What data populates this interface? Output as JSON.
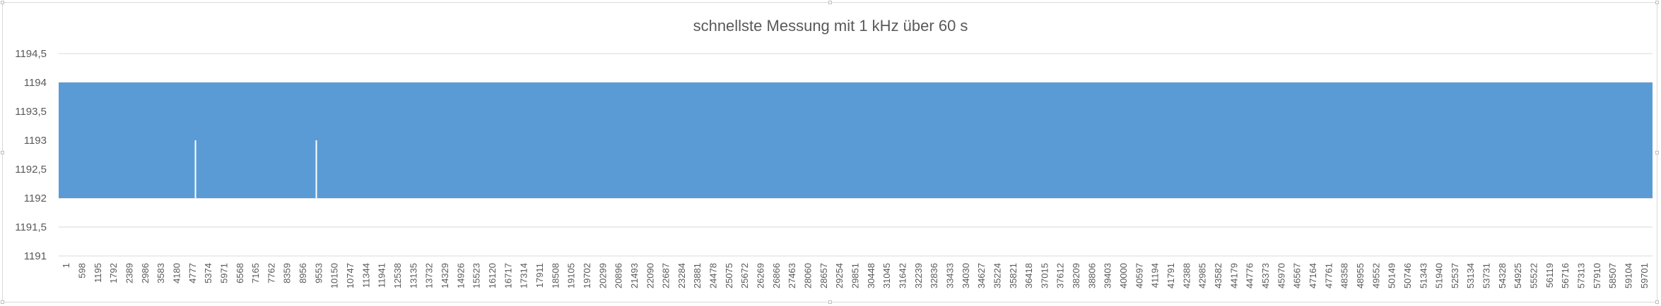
{
  "chart_data": {
    "type": "area",
    "title": "schnellste Messung mit 1 kHz über 60 s",
    "xlabel": "",
    "ylabel": "",
    "ylim": [
      1191,
      1194.5
    ],
    "y_ticks": [
      "1191",
      "1191,5",
      "1192",
      "1192,5",
      "1193",
      "1193,5",
      "1194",
      "1194,5"
    ],
    "x_tick_labels": [
      "1",
      "598",
      "1195",
      "1792",
      "2389",
      "2986",
      "3583",
      "4180",
      "4777",
      "5374",
      "5971",
      "6568",
      "7165",
      "7762",
      "8359",
      "8956",
      "9553",
      "10150",
      "10747",
      "11344",
      "11941",
      "12538",
      "13135",
      "13732",
      "14329",
      "14926",
      "15523",
      "16120",
      "16717",
      "17314",
      "17911",
      "18508",
      "19105",
      "19702",
      "20299",
      "20896",
      "21493",
      "22090",
      "22687",
      "23284",
      "23881",
      "24478",
      "25075",
      "25672",
      "26269",
      "26866",
      "27463",
      "28060",
      "28657",
      "29254",
      "29851",
      "30448",
      "31045",
      "31642",
      "32239",
      "32836",
      "33433",
      "34030",
      "34627",
      "35224",
      "35821",
      "36418",
      "37015",
      "37612",
      "38209",
      "38806",
      "39403",
      "40000",
      "40597",
      "41194",
      "41791",
      "42388",
      "42985",
      "43582",
      "44179",
      "44776",
      "45373",
      "45970",
      "46567",
      "47164",
      "47761",
      "48358",
      "48955",
      "49552",
      "50149",
      "50746",
      "51343",
      "51940",
      "52537",
      "53134",
      "53731",
      "54328",
      "54925",
      "55522",
      "56119",
      "56716",
      "57313",
      "57910",
      "58507",
      "59104",
      "59701"
    ],
    "x_range": [
      1,
      60000
    ],
    "series": [
      {
        "name": "",
        "values_summary": "Messwerte wechseln zwischen 1192 und 1194",
        "min": 1192,
        "max": 1194,
        "dips_to_1193_at_x": [
          5150,
          9700
        ]
      }
    ],
    "grid": true,
    "legend": "none",
    "fill_color": "#5b9bd5",
    "grid_color": "#d9d9d9",
    "text_color": "#595959"
  }
}
